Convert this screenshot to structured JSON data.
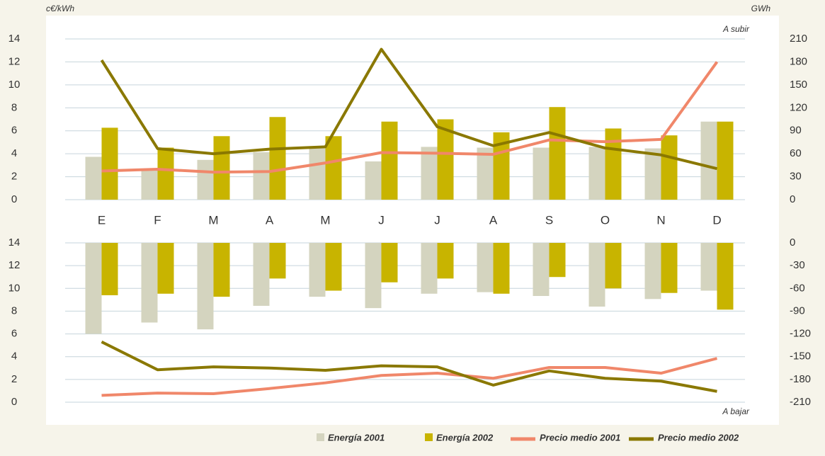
{
  "chart_data": [
    {
      "type": "bar",
      "y_label": "c€/kWh",
      "y2_label": "GWh",
      "annotation": "A subir",
      "categories": [
        "E",
        "F",
        "M",
        "A",
        "M",
        "J",
        "J",
        "A",
        "S",
        "O",
        "N",
        "D"
      ],
      "ylim": [
        0,
        14
      ],
      "yticks": [
        0,
        2,
        4,
        6,
        8,
        10,
        12,
        14
      ],
      "y2lim": [
        0,
        210
      ],
      "y2ticks": [
        0,
        30,
        60,
        90,
        120,
        150,
        180,
        210
      ],
      "grid": true,
      "series": [
        {
          "name": "Energía 2001",
          "type": "bar",
          "axis": "y2",
          "color": "#d4d4bf",
          "values": [
            56,
            39,
            52,
            62,
            67,
            50,
            69,
            68,
            68,
            69,
            67,
            102
          ]
        },
        {
          "name": "Energía 2002",
          "type": "bar",
          "axis": "y2",
          "color": "#c8b400",
          "values": [
            94,
            68,
            83,
            108,
            83,
            102,
            105,
            88,
            121,
            93,
            84,
            102
          ]
        },
        {
          "name": "Precio medio 2001",
          "type": "line",
          "color": "#f0876a",
          "values": [
            2.5,
            2.65,
            2.4,
            2.45,
            3.2,
            4.1,
            4.05,
            3.95,
            5.2,
            5.05,
            5.25,
            12.0
          ]
        },
        {
          "name": "Precio medio 2002",
          "type": "line",
          "color": "#8a7800",
          "values": [
            12.15,
            4.45,
            4.0,
            4.4,
            4.6,
            13.1,
            6.35,
            4.7,
            5.85,
            4.5,
            3.9,
            2.7
          ]
        }
      ]
    },
    {
      "type": "bar",
      "annotation": "A bajar",
      "ylim": [
        0,
        14
      ],
      "yticks": [
        0,
        2,
        4,
        6,
        8,
        10,
        12,
        14
      ],
      "y2lim": [
        -210,
        0
      ],
      "y2ticks": [
        -210,
        -180,
        -150,
        -120,
        -90,
        -60,
        -30,
        0
      ],
      "grid": true,
      "series": [
        {
          "type": "bar",
          "axis": "y2",
          "color": "#d4d4bf",
          "values": [
            -120,
            -105,
            -114,
            -83,
            -71,
            -86,
            -67,
            -65,
            -70,
            -84,
            -74,
            -63
          ]
        },
        {
          "type": "bar",
          "axis": "y2",
          "color": "#c8b400",
          "values": [
            -69,
            -67,
            -71,
            -47,
            -63,
            -52,
            -47,
            -67,
            -45,
            -60,
            -66,
            -88
          ]
        },
        {
          "type": "line",
          "color": "#f0876a",
          "values": [
            0.6,
            0.8,
            0.75,
            1.2,
            1.7,
            2.35,
            2.55,
            2.1,
            3.05,
            3.05,
            2.55,
            3.85
          ]
        },
        {
          "type": "line",
          "color": "#8a7800",
          "values": [
            5.3,
            2.85,
            3.1,
            3.0,
            2.8,
            3.2,
            3.1,
            1.5,
            2.75,
            2.1,
            1.85,
            0.95
          ]
        }
      ]
    }
  ]
}
